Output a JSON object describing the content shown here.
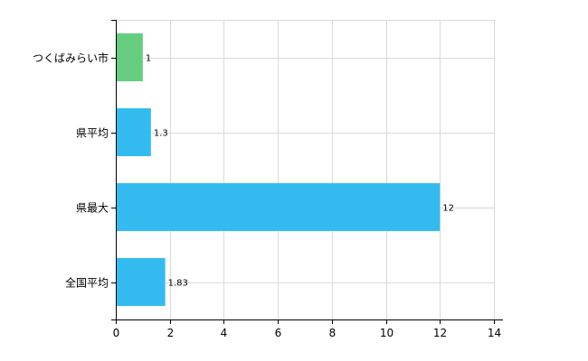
{
  "chart_data": {
    "type": "bar",
    "orientation": "horizontal",
    "categories": [
      "つくばみらい市",
      "県平均",
      "県最大",
      "全国平均"
    ],
    "values": [
      1,
      1.3,
      12,
      1.83
    ],
    "value_labels": [
      "1",
      "1.3",
      "12",
      "1.83"
    ],
    "bar_colors": [
      "#66cc7f",
      "#33bbf0",
      "#33bbf0",
      "#33bbf0"
    ],
    "xlim": [
      0,
      14
    ],
    "xticks": [
      0,
      2,
      4,
      6,
      8,
      10,
      12,
      14
    ],
    "grid": true,
    "legend": "none",
    "title": "",
    "xlabel": "",
    "ylabel": ""
  }
}
